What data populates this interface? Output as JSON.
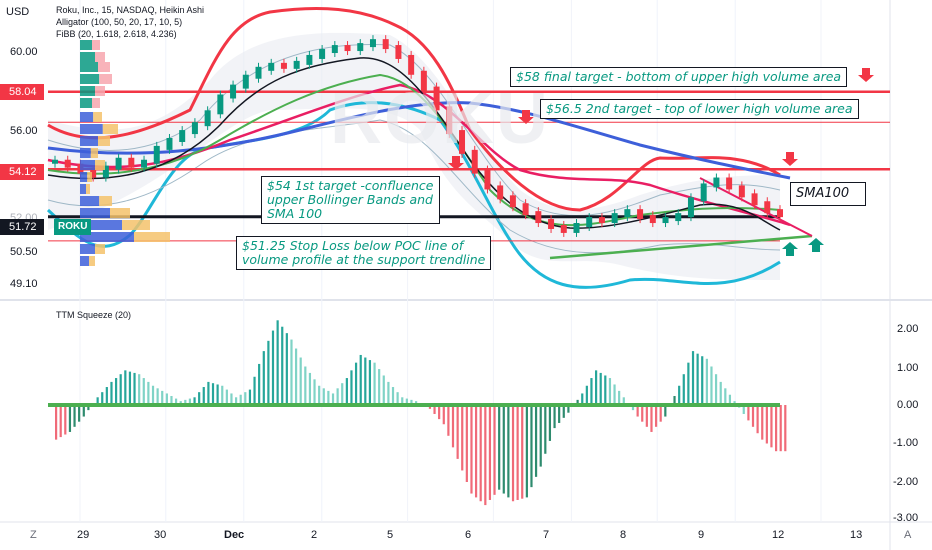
{
  "header": {
    "currency": "USD",
    "symbol_line": "Roku, Inc., 15, NASDAQ, Heikin Ashi",
    "indicator_lines": [
      "Alligator (100, 50, 20, 17, 10, 5)",
      "FiBB (20, 1.618, 2.618, 4.236)"
    ]
  },
  "price_axis": {
    "ticks": [
      "60.00",
      "56.00",
      "52.00",
      "50.50",
      "49.10"
    ],
    "tick_values": [
      60.0,
      56.0,
      52.0,
      50.5,
      49.1
    ]
  },
  "price_tags": [
    {
      "label": "58.04",
      "value": 58.04,
      "color": "#f23645"
    },
    {
      "label": "54.12",
      "value": 54.12,
      "color": "#f23645"
    },
    {
      "label": "51.72",
      "value": 51.72,
      "color": "#089981"
    }
  ],
  "ticker_tag": "ROKU",
  "watermark": "ROKU",
  "annotations": [
    {
      "id": "t58",
      "text": "$58 final target - bottom of upper high volume area"
    },
    {
      "id": "t565",
      "text": "$56.5 2nd target - top of lower  high volume area"
    },
    {
      "id": "t54",
      "lines": [
        "$54  1st target -confluence",
        "upper Bollinger Bands  and",
        "SMA 100"
      ]
    },
    {
      "id": "stop",
      "lines": [
        "$51.25  Stop Loss below POC line of",
        "volume profile at the support trendline"
      ]
    },
    {
      "id": "sma",
      "text": "SMA100"
    }
  ],
  "oscillator": {
    "title": "TTM Squeeze (20)",
    "axis_ticks": [
      "2.00",
      "1.00",
      "0.00",
      "-1.00",
      "-2.00",
      "-3.00"
    ],
    "axis_values": [
      2,
      1,
      0,
      -1,
      -2,
      -3
    ]
  },
  "time_axis": {
    "labels": [
      "29",
      "30",
      "Dec",
      "2",
      "5",
      "6",
      "7",
      "8",
      "9",
      "12",
      "13"
    ],
    "corner_left": "Z",
    "corner_right": "A"
  },
  "colors": {
    "up": "#089981",
    "down": "#f23645",
    "bb_outer": "#f23645",
    "bb_lower": "#1fb8d8",
    "sma100": "#3d5fd9",
    "green_ma": "#4caf50",
    "black_ma": "#131722"
  },
  "chart_data": {
    "type": "line",
    "price_range": [
      48.8,
      62.0
    ],
    "series": [
      {
        "name": "SMA100",
        "x": [
          0,
          0.1,
          0.2,
          0.3,
          0.4,
          0.5,
          0.6,
          0.7,
          0.8,
          1.0
        ],
        "values": [
          55.2,
          54.9,
          55.0,
          55.7,
          56.4,
          56.5,
          56.0,
          55.3,
          54.6,
          54.0
        ]
      },
      {
        "name": "",
        "x": [
          0,
          0.1,
          0.2,
          0.3,
          0.4,
          0.5,
          0.6,
          0.7,
          0.8,
          0.9,
          1.0
        ],
        "values": [
          54.3,
          54.5,
          56.0,
          58.0,
          59.5,
          60.2,
          57.0,
          53.0,
          51.8,
          52.2,
          52.5
        ]
      }
    ],
    "levels": [
      58.04,
      56.5,
      54.12,
      51.72,
      50.5
    ],
    "squeeze": {
      "range": [
        -3,
        2.3
      ],
      "values": [
        -0.9,
        -0.7,
        -0.3,
        0.2,
        0.6,
        0.9,
        0.8,
        0.5,
        0.3,
        0.1,
        0.2,
        0.6,
        0.5,
        0.2,
        0.4,
        1.4,
        2.2,
        1.7,
        1.0,
        0.5,
        0.3,
        0.7,
        1.3,
        1.1,
        0.6,
        0.2,
        0.1,
        -0.1,
        -0.5,
        -1.4,
        -2.3,
        -2.6,
        -2.2,
        -2.5,
        -2.4,
        -1.6,
        -0.6,
        -0.2,
        0.3,
        0.9,
        0.7,
        0.2,
        -0.3,
        -0.7,
        -0.3,
        0.5,
        1.4,
        1.2,
        0.6,
        0.1,
        -0.4,
        -0.9,
        -1.2
      ]
    }
  }
}
